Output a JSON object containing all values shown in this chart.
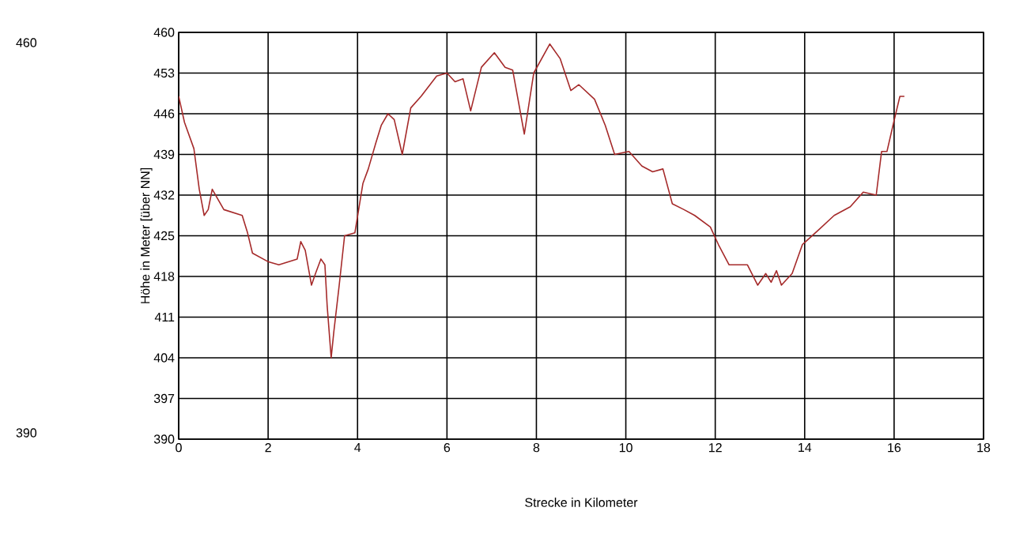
{
  "chart_data": {
    "type": "line",
    "xlabel": "Strecke in Kilometer",
    "ylabel": "Höhe in Meter [über NN]",
    "xlim": [
      0,
      18
    ],
    "ylim": [
      390,
      460
    ],
    "xticks": [
      0,
      2,
      4,
      6,
      8,
      10,
      12,
      14,
      16,
      18
    ],
    "yticks": [
      390,
      397,
      404,
      411,
      418,
      425,
      432,
      439,
      446,
      453,
      460
    ],
    "grid": true,
    "marker": "none",
    "line_style": "solid",
    "annotations": [
      "460",
      "390"
    ],
    "series": [
      {
        "color": "#a52a2a",
        "x": [
          0,
          0.13,
          0.34,
          0.46,
          0.57,
          0.66,
          0.75,
          1.01,
          1.42,
          1.54,
          1.65,
          2.01,
          2.24,
          2.65,
          2.73,
          2.83,
          2.97,
          3.06,
          3.18,
          3.27,
          3.32,
          3.41,
          3.47,
          3.59,
          3.71,
          3.94,
          4.12,
          4.24,
          4.41,
          4.53,
          4.68,
          4.82,
          5.0,
          5.19,
          5.42,
          5.77,
          6.0,
          6.18,
          6.36,
          6.53,
          6.77,
          7.06,
          7.3,
          7.47,
          7.73,
          7.94,
          8.3,
          8.53,
          8.77,
          8.95,
          9.3,
          9.54,
          9.75,
          10.07,
          10.36,
          10.6,
          10.83,
          11.04,
          11.3,
          11.54,
          11.89,
          12.07,
          12.31,
          12.72,
          12.95,
          13.13,
          13.25,
          13.37,
          13.48,
          13.72,
          13.95,
          14.31,
          14.66,
          15.02,
          15.31,
          15.6,
          15.72,
          15.84,
          15.99,
          16.13,
          16.23
        ],
        "values": [
          449,
          444.5,
          440,
          433,
          428.5,
          429.5,
          433,
          429.5,
          428.5,
          425.5,
          422,
          420.5,
          420,
          421,
          424,
          422.5,
          416.5,
          418.5,
          421,
          420,
          413,
          404,
          408.5,
          416.5,
          425,
          425.5,
          434,
          436.5,
          441,
          444,
          446,
          445,
          439,
          447,
          449,
          452.5,
          453,
          451.5,
          452,
          446.5,
          454,
          456.5,
          454,
          453.5,
          442.5,
          453,
          458,
          455.5,
          450,
          451,
          448.5,
          444,
          439,
          439.5,
          437,
          436,
          436.5,
          430.5,
          429.5,
          428.5,
          426.5,
          423.5,
          420,
          420,
          416.5,
          418.5,
          417,
          419,
          416.5,
          418.5,
          423.5,
          426,
          428.5,
          430,
          432.5,
          432,
          439.5,
          439.5,
          444.5,
          449,
          449
        ]
      }
    ]
  }
}
